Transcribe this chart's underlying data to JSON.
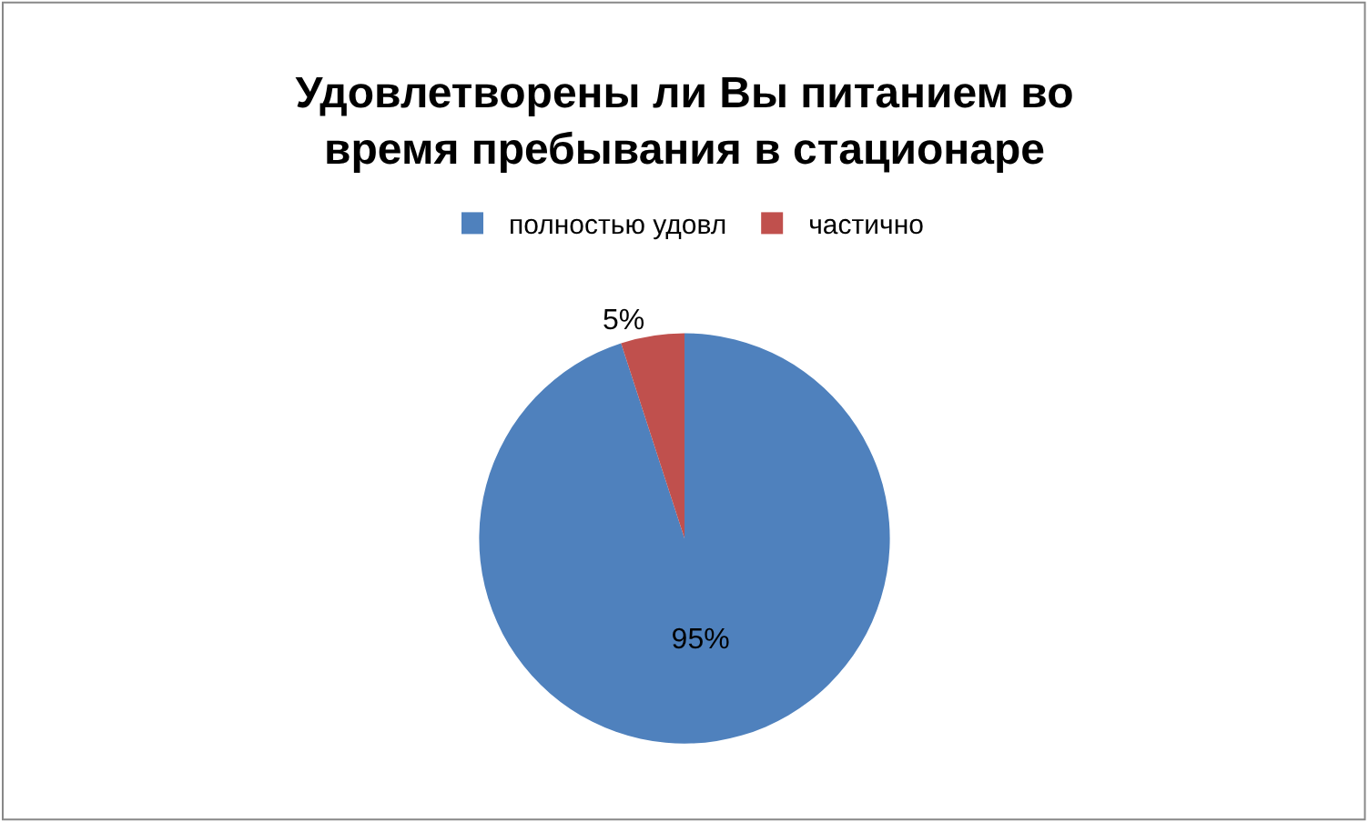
{
  "chart_data": {
    "type": "pie",
    "title": "Удовлетворены ли Вы питанием во время пребывания в стационаре",
    "categories": [
      "полностью удовл",
      "частично"
    ],
    "values": [
      95,
      5
    ],
    "colors": [
      "#4f81bd",
      "#c0504d"
    ],
    "value_labels": [
      "95%",
      "5%"
    ],
    "legend": "top"
  }
}
